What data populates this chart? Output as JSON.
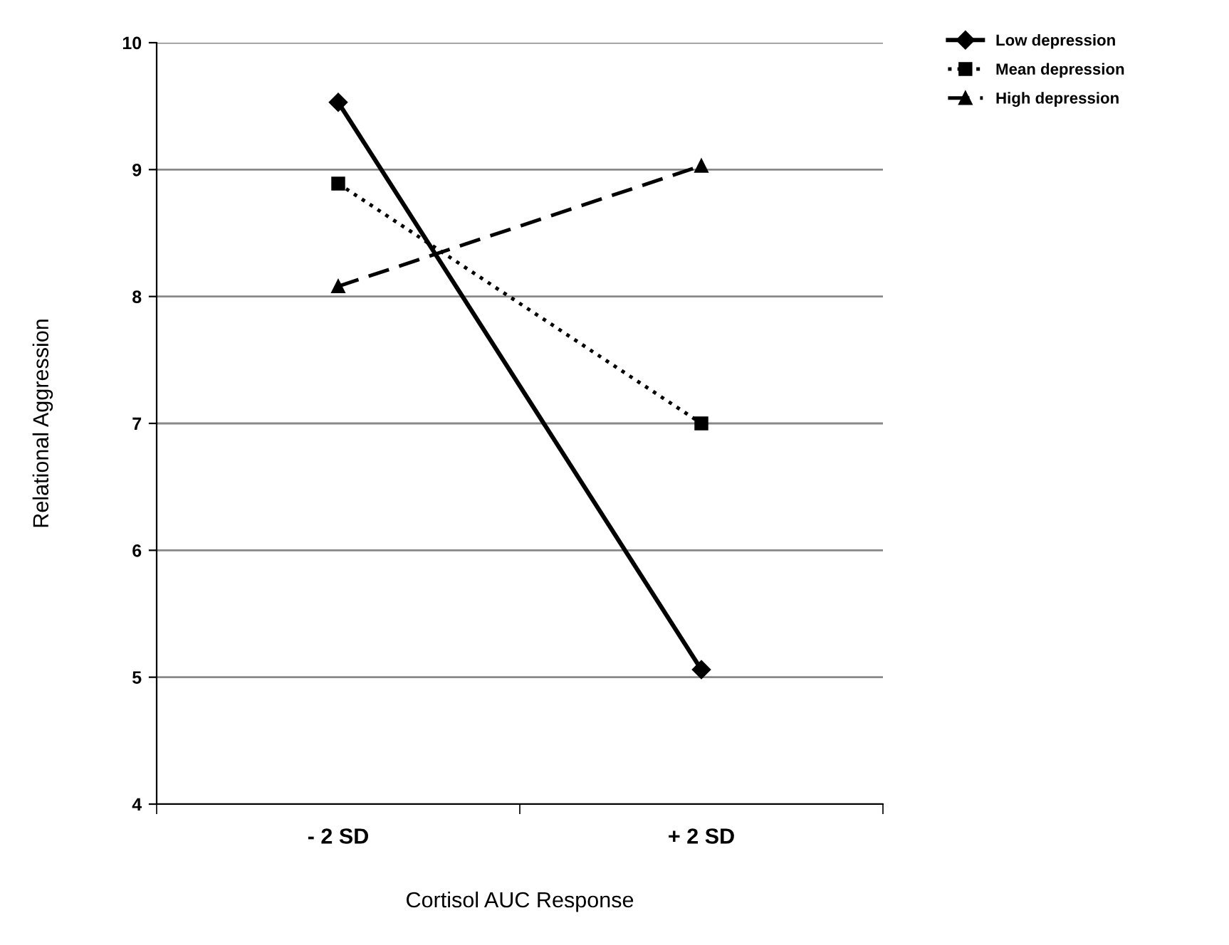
{
  "chart_data": {
    "type": "line",
    "xlabel": "Cortisol AUC Response",
    "ylabel": "Relational Aggression",
    "categories": [
      "- 2 SD",
      "+ 2 SD"
    ],
    "ylim": [
      4,
      10
    ],
    "yticks": [
      4,
      5,
      6,
      7,
      8,
      9,
      10
    ],
    "grid": "y",
    "legend": "top right",
    "series": [
      {
        "name": "Low depression",
        "color": "#000000",
        "marker": "diamond",
        "line_style": "solid",
        "values": [
          9.53,
          5.06
        ]
      },
      {
        "name": "Mean depression",
        "color": "#000000",
        "marker": "square",
        "line_style": "dotted",
        "values": [
          8.89,
          7.0
        ]
      },
      {
        "name": "High depression",
        "color": "#000000",
        "marker": "triangle",
        "line_style": "dashed",
        "values": [
          8.08,
          9.03
        ]
      }
    ]
  }
}
